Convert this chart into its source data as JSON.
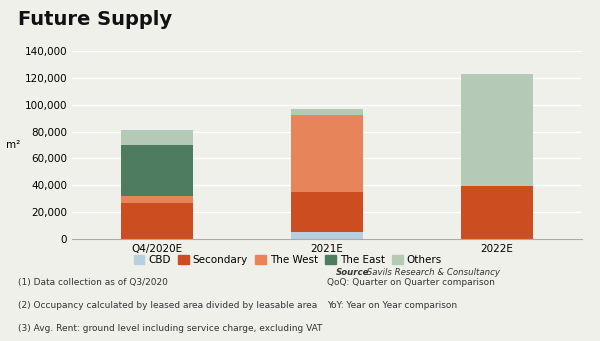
{
  "title": "Future Supply",
  "categories": [
    "Q4/2020E",
    "2021E",
    "2022E"
  ],
  "series": {
    "CBD": [
      0,
      5000,
      0
    ],
    "Secondary": [
      27000,
      30000,
      39000
    ],
    "The West": [
      5000,
      57000,
      0
    ],
    "The East": [
      38000,
      0,
      0
    ],
    "Others": [
      11000,
      5000,
      84000
    ]
  },
  "colors": {
    "CBD": "#b8cfe0",
    "Secondary": "#cc4e20",
    "The West": "#e8845a",
    "The East": "#4d7c61",
    "Others": "#b5c9b7"
  },
  "ylabel": "m²",
  "ylim": [
    0,
    140000
  ],
  "yticks": [
    0,
    20000,
    40000,
    60000,
    80000,
    100000,
    120000,
    140000
  ],
  "source_bold": "Source",
  "source_text": " Savils Research & Consultancy",
  "footnotes": [
    "(1) Data collection as of Q3/2020",
    "(2) Occupancy calculated by leased area divided by leasable area",
    "(3) Avg. Rent: ground level including service charge, excluding VAT"
  ],
  "right_notes": [
    "QoQ: Quarter on Quarter comparison",
    "YoY: Year on Year comparison"
  ],
  "background_color": "#f0f0eb",
  "bar_width": 0.42,
  "title_fontsize": 14,
  "legend_fontsize": 7.5,
  "axis_fontsize": 7.5,
  "footnote_fontsize": 6.5
}
